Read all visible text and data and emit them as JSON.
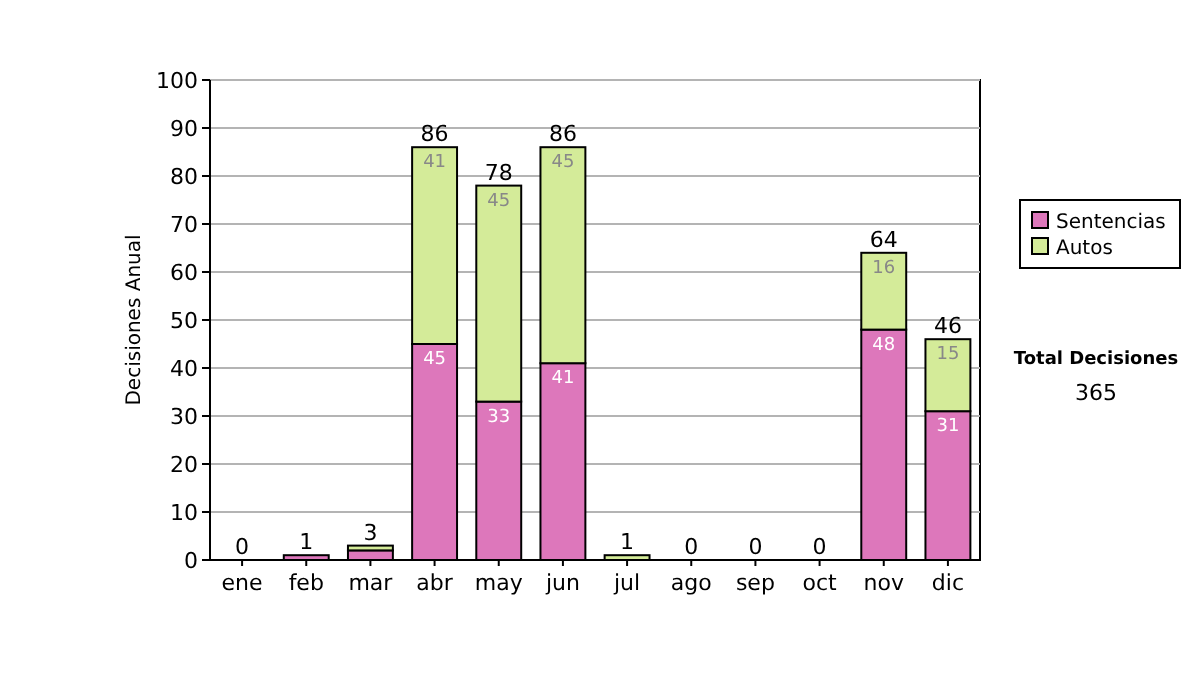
{
  "chart_data": {
    "type": "bar",
    "stacked": true,
    "ylabel": "Decisiones Anual",
    "categories": [
      "ene",
      "feb",
      "mar",
      "abr",
      "may",
      "jun",
      "jul",
      "ago",
      "sep",
      "oct",
      "nov",
      "dic"
    ],
    "series": [
      {
        "name": "Sentencias",
        "color": "#dd77bb",
        "values": [
          0,
          1,
          2,
          45,
          33,
          41,
          0,
          0,
          0,
          0,
          48,
          31
        ],
        "value_labels": [
          null,
          null,
          null,
          "45",
          "33",
          "41",
          null,
          null,
          null,
          null,
          "48",
          "31"
        ]
      },
      {
        "name": "Autos",
        "color": "#d4eb99",
        "values": [
          0,
          0,
          1,
          41,
          45,
          45,
          1,
          0,
          0,
          0,
          16,
          15
        ],
        "value_labels": [
          null,
          null,
          null,
          "41",
          "45",
          "45",
          null,
          null,
          null,
          null,
          "16",
          "15"
        ]
      }
    ],
    "totals": [
      "0",
      "1",
      "3",
      "86",
      "78",
      "86",
      "1",
      "0",
      "0",
      "0",
      "64",
      "46"
    ],
    "ylim": [
      0,
      100
    ],
    "yticks": [
      0,
      10,
      20,
      30,
      40,
      50,
      60,
      70,
      80,
      90,
      100
    ],
    "grid": "y",
    "legend": "right",
    "annotations": [
      "Total Decisiones",
      "365"
    ]
  }
}
